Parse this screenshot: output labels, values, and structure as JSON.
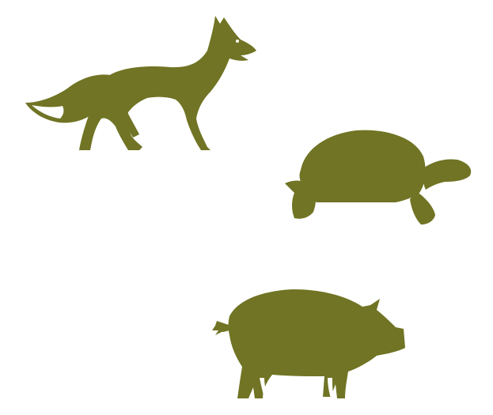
{
  "colors": {
    "background": "#ffffff",
    "silhouette": "#707424"
  },
  "figures": [
    {
      "icon": "fox-icon",
      "label": ""
    },
    {
      "icon": "tortoise-icon",
      "label": ""
    },
    {
      "icon": "pig-icon",
      "label": ""
    }
  ]
}
